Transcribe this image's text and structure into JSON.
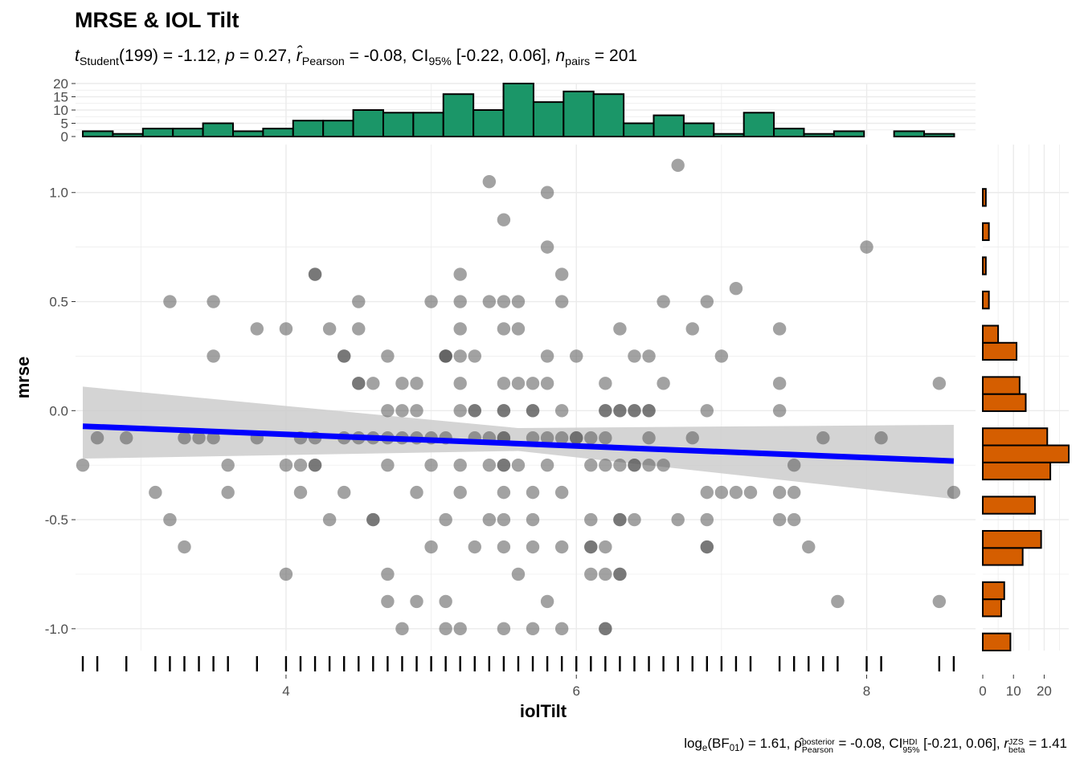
{
  "title": "MRSE & IOL Tilt",
  "subtitle": {
    "t_sub": "Student",
    "df": "(199)",
    "t_value": " = -1.12, ",
    "p_value": " = 0.27, ",
    "r_sub": "Pearson",
    "r_value": " = -0.08, CI",
    "ci_sub": "95%",
    "ci_value": " [-0.22, 0.06], ",
    "n_sub": "pairs",
    "n_value": " = 201"
  },
  "caption": {
    "log": "log",
    "log_sub": "e",
    "bf": "(BF",
    "bf_sub": "01",
    "bf_value": ") = 1.61, ",
    "rho_sup": "posterior",
    "rho_sub": "Pearson",
    "rho_value": " = -0.08, CI",
    "ci_sup": "HDI",
    "ci_sub": "95%",
    "ci_value": " [-0.21, 0.06], ",
    "r_sup": "JZS",
    "r_sub": "beta",
    "r_value": " = 1.41"
  },
  "colors": {
    "points": "#555555",
    "line": "#0000ff",
    "band": "#cccccc",
    "top_hist": "#1b9668",
    "right_hist": "#d55e00",
    "grid": "#ebebeb"
  },
  "chart_data": {
    "type": "scatter",
    "xlabel": "iolTilt",
    "ylabel": "mrse",
    "xlim": [
      2.55,
      8.75
    ],
    "ylim": [
      -1.1,
      1.22
    ],
    "x_ticks": [
      4,
      6,
      8
    ],
    "y_ticks": [
      -1.0,
      -0.5,
      0.0,
      0.5,
      1.0
    ],
    "y_tick_labels": [
      "-1.0",
      "-0.5",
      "0.0",
      "0.5",
      "1.0"
    ],
    "grid": true,
    "rug": true,
    "regression": {
      "intercept": -0.0024,
      "slope": -0.0266,
      "x_range": [
        2.6,
        8.6
      ]
    },
    "ci_band": {
      "x": [
        2.6,
        5.6,
        8.6
      ],
      "lower": [
        -0.22,
        -0.185,
        -0.405
      ],
      "upper": [
        0.11,
        -0.08,
        -0.065
      ]
    },
    "points": [
      [
        2.6,
        -0.25
      ],
      [
        2.7,
        -0.125
      ],
      [
        2.9,
        -0.125
      ],
      [
        3.1,
        -0.375
      ],
      [
        3.2,
        -0.5
      ],
      [
        3.2,
        0.5
      ],
      [
        3.3,
        -0.125
      ],
      [
        3.3,
        -0.625
      ],
      [
        3.4,
        -0.125
      ],
      [
        3.5,
        -0.125
      ],
      [
        3.5,
        0.5
      ],
      [
        3.5,
        0.25
      ],
      [
        3.6,
        -0.25
      ],
      [
        3.6,
        -0.375
      ],
      [
        3.8,
        -0.125
      ],
      [
        3.8,
        0.375
      ],
      [
        4.0,
        -0.25
      ],
      [
        4.0,
        -0.75
      ],
      [
        4.0,
        0.375
      ],
      [
        4.1,
        -0.25
      ],
      [
        4.1,
        -0.125
      ],
      [
        4.1,
        -0.375
      ],
      [
        4.2,
        -0.25
      ],
      [
        4.2,
        -0.25
      ],
      [
        4.2,
        0.625
      ],
      [
        4.2,
        0.625
      ],
      [
        4.2,
        -0.125
      ],
      [
        4.3,
        -0.5
      ],
      [
        4.3,
        0.375
      ],
      [
        4.4,
        0.25
      ],
      [
        4.4,
        0.25
      ],
      [
        4.4,
        -0.375
      ],
      [
        4.4,
        -0.125
      ],
      [
        4.5,
        0.5
      ],
      [
        4.5,
        0.375
      ],
      [
        4.5,
        0.125
      ],
      [
        4.5,
        0.125
      ],
      [
        4.5,
        -0.125
      ],
      [
        4.6,
        -0.125
      ],
      [
        4.6,
        -0.5
      ],
      [
        4.6,
        -0.5
      ],
      [
        4.6,
        0.125
      ],
      [
        4.7,
        0.25
      ],
      [
        4.7,
        0.0
      ],
      [
        4.7,
        -0.125
      ],
      [
        4.7,
        -0.25
      ],
      [
        4.7,
        -0.75
      ],
      [
        4.7,
        -0.875
      ],
      [
        4.8,
        0.125
      ],
      [
        4.8,
        0.0
      ],
      [
        4.8,
        -0.125
      ],
      [
        4.8,
        -1.0
      ],
      [
        4.9,
        0.125
      ],
      [
        4.9,
        0.0
      ],
      [
        4.9,
        -0.125
      ],
      [
        4.9,
        -0.375
      ],
      [
        4.9,
        -0.875
      ],
      [
        5.0,
        0.5
      ],
      [
        5.0,
        -0.125
      ],
      [
        5.0,
        -0.25
      ],
      [
        5.0,
        -0.625
      ],
      [
        5.1,
        -0.125
      ],
      [
        5.1,
        -0.5
      ],
      [
        5.1,
        -0.875
      ],
      [
        5.1,
        -1.0
      ],
      [
        5.1,
        0.25
      ],
      [
        5.1,
        0.25
      ],
      [
        5.1,
        0.25
      ],
      [
        5.2,
        0.625
      ],
      [
        5.2,
        0.5
      ],
      [
        5.2,
        0.375
      ],
      [
        5.2,
        0.25
      ],
      [
        5.2,
        0.125
      ],
      [
        5.2,
        0.0
      ],
      [
        5.2,
        -0.25
      ],
      [
        5.2,
        -0.375
      ],
      [
        5.2,
        -1.0
      ],
      [
        5.3,
        -0.125
      ],
      [
        5.3,
        0.0
      ],
      [
        5.3,
        0.0
      ],
      [
        5.3,
        0.25
      ],
      [
        5.3,
        -0.625
      ],
      [
        5.4,
        1.05
      ],
      [
        5.4,
        0.5
      ],
      [
        5.4,
        -0.125
      ],
      [
        5.4,
        -0.25
      ],
      [
        5.4,
        -0.5
      ],
      [
        5.5,
        0.875
      ],
      [
        5.5,
        0.5
      ],
      [
        5.5,
        0.375
      ],
      [
        5.5,
        0.125
      ],
      [
        5.5,
        0.0
      ],
      [
        5.5,
        0.0
      ],
      [
        5.5,
        -0.125
      ],
      [
        5.5,
        -0.125
      ],
      [
        5.5,
        -0.25
      ],
      [
        5.5,
        -0.25
      ],
      [
        5.5,
        -0.375
      ],
      [
        5.5,
        -0.5
      ],
      [
        5.5,
        -0.625
      ],
      [
        5.5,
        -1.0
      ],
      [
        5.6,
        0.5
      ],
      [
        5.6,
        0.375
      ],
      [
        5.6,
        0.125
      ],
      [
        5.6,
        -0.25
      ],
      [
        5.6,
        -0.75
      ],
      [
        5.7,
        0.125
      ],
      [
        5.7,
        0.0
      ],
      [
        5.7,
        0.0
      ],
      [
        5.7,
        -0.125
      ],
      [
        5.7,
        -0.375
      ],
      [
        5.7,
        -0.5
      ],
      [
        5.7,
        -0.625
      ],
      [
        5.7,
        -1.0
      ],
      [
        5.8,
        1.0
      ],
      [
        5.8,
        0.75
      ],
      [
        5.8,
        0.25
      ],
      [
        5.8,
        0.125
      ],
      [
        5.8,
        -0.125
      ],
      [
        5.8,
        -0.25
      ],
      [
        5.8,
        -0.875
      ],
      [
        5.9,
        0.625
      ],
      [
        5.9,
        0.5
      ],
      [
        5.9,
        0.0
      ],
      [
        5.9,
        -0.125
      ],
      [
        5.9,
        -0.375
      ],
      [
        5.9,
        -0.625
      ],
      [
        5.9,
        -1.0
      ],
      [
        6.0,
        0.25
      ],
      [
        6.0,
        -0.125
      ],
      [
        6.0,
        -0.125
      ],
      [
        6.1,
        -0.5
      ],
      [
        6.1,
        -0.625
      ],
      [
        6.1,
        -0.625
      ],
      [
        6.1,
        -0.75
      ],
      [
        6.1,
        -0.25
      ],
      [
        6.1,
        -0.125
      ],
      [
        6.2,
        0.125
      ],
      [
        6.2,
        0.0
      ],
      [
        6.2,
        0.0
      ],
      [
        6.2,
        -0.125
      ],
      [
        6.2,
        -0.25
      ],
      [
        6.2,
        -0.625
      ],
      [
        6.2,
        -0.75
      ],
      [
        6.2,
        -1.0
      ],
      [
        6.2,
        -1.0
      ],
      [
        6.3,
        0.375
      ],
      [
        6.3,
        0.0
      ],
      [
        6.3,
        0.0
      ],
      [
        6.3,
        -0.25
      ],
      [
        6.3,
        -0.5
      ],
      [
        6.3,
        -0.5
      ],
      [
        6.3,
        -0.75
      ],
      [
        6.3,
        -0.75
      ],
      [
        6.4,
        0.25
      ],
      [
        6.4,
        0.0
      ],
      [
        6.4,
        0.0
      ],
      [
        6.4,
        -0.25
      ],
      [
        6.4,
        -0.25
      ],
      [
        6.4,
        -0.5
      ],
      [
        6.5,
        0.25
      ],
      [
        6.5,
        0.0
      ],
      [
        6.5,
        0.0
      ],
      [
        6.5,
        -0.125
      ],
      [
        6.5,
        -0.25
      ],
      [
        6.6,
        0.5
      ],
      [
        6.6,
        0.125
      ],
      [
        6.6,
        -0.25
      ],
      [
        6.7,
        1.125
      ],
      [
        6.7,
        -0.5
      ],
      [
        6.8,
        0.375
      ],
      [
        6.8,
        -0.125
      ],
      [
        6.9,
        0.5
      ],
      [
        6.9,
        0.0
      ],
      [
        6.9,
        -0.375
      ],
      [
        6.9,
        -0.5
      ],
      [
        6.9,
        -0.625
      ],
      [
        6.9,
        -0.625
      ],
      [
        7.0,
        0.25
      ],
      [
        7.0,
        -0.375
      ],
      [
        7.1,
        0.56
      ],
      [
        7.1,
        -0.375
      ],
      [
        7.2,
        -0.375
      ],
      [
        7.4,
        0.375
      ],
      [
        7.4,
        0.125
      ],
      [
        7.4,
        0.0
      ],
      [
        7.4,
        -0.375
      ],
      [
        7.4,
        -0.5
      ],
      [
        7.5,
        -0.25
      ],
      [
        7.5,
        -0.375
      ],
      [
        7.5,
        -0.5
      ],
      [
        7.6,
        -0.625
      ],
      [
        7.7,
        -0.125
      ],
      [
        7.8,
        -0.875
      ],
      [
        8.0,
        0.75
      ],
      [
        8.1,
        -0.125
      ],
      [
        8.5,
        0.125
      ],
      [
        8.5,
        -0.875
      ],
      [
        8.6,
        -0.375
      ]
    ],
    "rug_x": [
      2.6,
      2.7,
      2.9,
      3.1,
      3.2,
      3.3,
      3.4,
      3.5,
      3.6,
      3.8,
      4.0,
      4.1,
      4.2,
      4.3,
      4.4,
      4.5,
      4.6,
      4.7,
      4.8,
      4.9,
      5.0,
      5.1,
      5.2,
      5.3,
      5.4,
      5.5,
      5.6,
      5.7,
      5.8,
      5.9,
      6.0,
      6.1,
      6.2,
      6.3,
      6.4,
      6.5,
      6.6,
      6.7,
      6.8,
      6.9,
      7.0,
      7.1,
      7.2,
      7.4,
      7.5,
      7.6,
      7.7,
      7.8,
      8.0,
      8.1,
      8.5,
      8.6
    ],
    "top_hist": {
      "ylim": [
        0,
        20
      ],
      "y_ticks": [
        0,
        5,
        10,
        15,
        20
      ],
      "breaks_start": 2.6,
      "binwidth": 0.207,
      "counts": [
        2,
        1,
        3,
        3,
        5,
        2,
        3,
        6,
        6,
        10,
        9,
        9,
        16,
        10,
        20,
        13,
        17,
        16,
        5,
        8,
        5,
        1,
        9,
        3,
        1,
        2,
        0,
        2,
        1
      ]
    },
    "right_hist": {
      "xlim": [
        0,
        28
      ],
      "x_ticks": [
        0,
        10,
        20
      ],
      "breaks_start": -1.1,
      "binwidth": 0.0784,
      "counts": [
        9,
        0,
        6,
        7,
        0,
        13,
        19,
        0,
        17,
        0,
        22,
        28,
        21,
        0,
        14,
        12,
        0,
        11,
        5,
        0,
        2,
        0,
        1,
        0,
        2,
        0,
        1
      ]
    }
  }
}
